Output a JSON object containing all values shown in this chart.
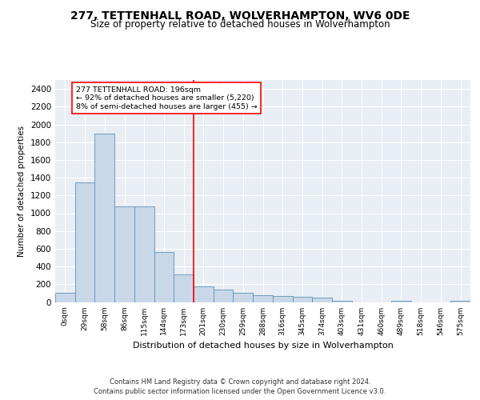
{
  "title": "277, TETTENHALL ROAD, WOLVERHAMPTON, WV6 0DE",
  "subtitle": "Size of property relative to detached houses in Wolverhampton",
  "xlabel": "Distribution of detached houses by size in Wolverhampton",
  "ylabel": "Number of detached properties",
  "footer_line1": "Contains HM Land Registry data © Crown copyright and database right 2024.",
  "footer_line2": "Contains public sector information licensed under the Open Government Licence v3.0.",
  "bin_labels": [
    "0sqm",
    "29sqm",
    "58sqm",
    "86sqm",
    "115sqm",
    "144sqm",
    "173sqm",
    "201sqm",
    "230sqm",
    "259sqm",
    "288sqm",
    "316sqm",
    "345sqm",
    "374sqm",
    "403sqm",
    "431sqm",
    "460sqm",
    "489sqm",
    "518sqm",
    "546sqm",
    "575sqm"
  ],
  "bar_heights": [
    100,
    1350,
    1900,
    1075,
    1075,
    560,
    310,
    175,
    140,
    100,
    80,
    70,
    60,
    50,
    15,
    0,
    0,
    10,
    0,
    0,
    10
  ],
  "bar_color": "#c8d8e8",
  "bar_edge_color": "#6090b8",
  "vline_x": 7.0,
  "vline_color": "red",
  "annotation_text": "277 TETTENHALL ROAD: 196sqm\n← 92% of detached houses are smaller (5,220)\n8% of semi-detached houses are larger (455) →",
  "annotation_box_color": "white",
  "annotation_box_edge": "red",
  "ylim": [
    0,
    2500
  ],
  "yticks": [
    0,
    200,
    400,
    600,
    800,
    1000,
    1200,
    1400,
    1600,
    1800,
    2000,
    2200,
    2400
  ],
  "plot_bg_color": "#e8eef4",
  "title_fontsize": 10,
  "subtitle_fontsize": 8.5
}
